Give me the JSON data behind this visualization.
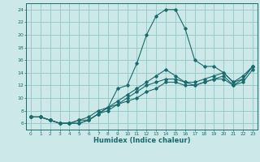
{
  "title": "",
  "xlabel": "Humidex (Indice chaleur)",
  "ylabel": "",
  "background_color": "#cce8e8",
  "grid_color": "#99cccc",
  "line_color": "#1a6b6b",
  "xlim": [
    -0.5,
    23.5
  ],
  "ylim": [
    5.0,
    25.0
  ],
  "yticks": [
    6,
    8,
    10,
    12,
    14,
    16,
    18,
    20,
    22,
    24
  ],
  "xticks": [
    0,
    1,
    2,
    3,
    4,
    5,
    6,
    7,
    8,
    9,
    10,
    11,
    12,
    13,
    14,
    15,
    16,
    17,
    18,
    19,
    20,
    21,
    22,
    23
  ],
  "series": [
    {
      "x": [
        0,
        1,
        2,
        3,
        4,
        5,
        6,
        7,
        8,
        9,
        10,
        11,
        12,
        13,
        14,
        15,
        16,
        17,
        18,
        19,
        20,
        21,
        22,
        23
      ],
      "y": [
        7.0,
        7.0,
        6.5,
        6.0,
        6.0,
        6.5,
        7.0,
        8.0,
        8.5,
        11.5,
        12.0,
        15.5,
        20.0,
        23.0,
        24.0,
        24.0,
        21.0,
        16.0,
        15.0,
        15.0,
        14.0,
        12.5,
        13.0,
        15.0
      ]
    },
    {
      "x": [
        0,
        1,
        2,
        3,
        4,
        5,
        6,
        7,
        8,
        9,
        10,
        11,
        12,
        13,
        14,
        15,
        16,
        17,
        18,
        19,
        20,
        21,
        22,
        23
      ],
      "y": [
        7.0,
        7.0,
        6.5,
        6.0,
        6.0,
        6.5,
        6.5,
        7.5,
        8.5,
        9.5,
        10.5,
        11.5,
        12.5,
        13.5,
        14.5,
        13.5,
        12.5,
        12.5,
        13.0,
        13.5,
        14.0,
        12.5,
        13.5,
        15.0
      ]
    },
    {
      "x": [
        0,
        1,
        2,
        3,
        4,
        5,
        6,
        7,
        8,
        9,
        10,
        11,
        12,
        13,
        14,
        15,
        16,
        17,
        18,
        19,
        20,
        21,
        22,
        23
      ],
      "y": [
        7.0,
        7.0,
        6.5,
        6.0,
        6.0,
        6.0,
        6.5,
        7.5,
        8.5,
        9.0,
        10.0,
        11.0,
        12.0,
        12.5,
        13.0,
        13.0,
        12.5,
        12.0,
        12.5,
        13.0,
        13.5,
        12.0,
        13.0,
        15.0
      ]
    },
    {
      "x": [
        0,
        1,
        2,
        3,
        4,
        5,
        6,
        7,
        8,
        9,
        10,
        11,
        12,
        13,
        14,
        15,
        16,
        17,
        18,
        19,
        20,
        21,
        22,
        23
      ],
      "y": [
        7.0,
        7.0,
        6.5,
        6.0,
        6.0,
        6.0,
        6.5,
        7.5,
        8.0,
        9.0,
        9.5,
        10.0,
        11.0,
        11.5,
        12.5,
        12.5,
        12.0,
        12.0,
        12.5,
        13.0,
        13.0,
        12.0,
        12.5,
        14.5
      ]
    }
  ]
}
